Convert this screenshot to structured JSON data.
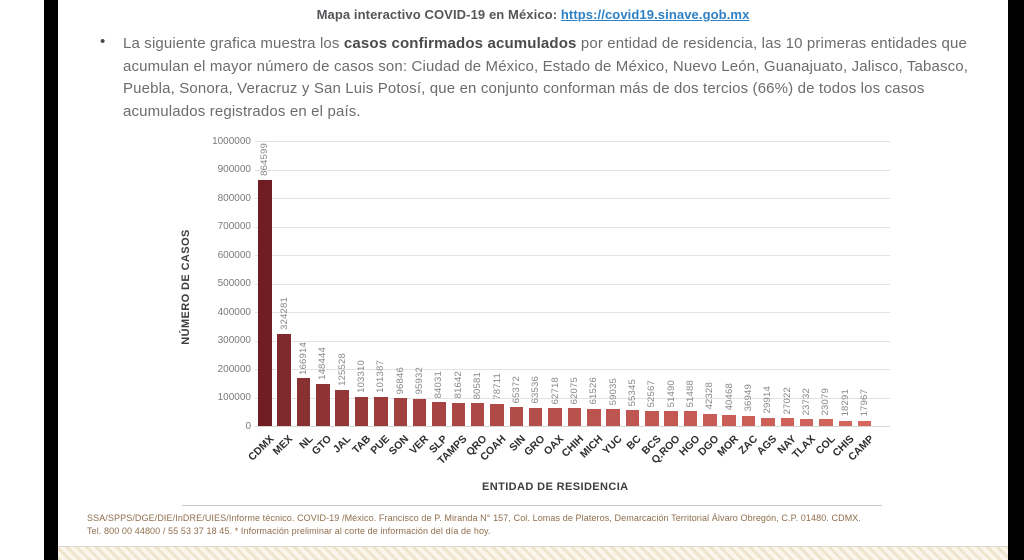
{
  "header": {
    "title": "Mapa interactivo COVID-19 en México:",
    "link": "https://covid19.sinave.gob.mx"
  },
  "bullet": {
    "marker": "•",
    "text_before": "La siguiente grafica muestra los ",
    "bold": "casos confirmados acumulados",
    "text_after": " por entidad de residencia, las 10 primeras entidades que acumulan el mayor número de casos son: Ciudad de México, Estado de México, Nuevo León, Guanajuato, Jalisco, Tabasco, Puebla, Sonora, Veracruz y San Luis Potosí, que en conjunto conforman más de dos tercios (66%) de todos los casos acumulados registrados en el país."
  },
  "chart_data": {
    "type": "bar",
    "title": "",
    "xlabel": "ENTIDAD DE RESIDENCIA",
    "ylabel": "NÚMERO DE CASOS",
    "ylim": [
      0,
      1000000
    ],
    "ytick_step": 100000,
    "yticks": [
      0,
      100000,
      200000,
      300000,
      400000,
      500000,
      600000,
      700000,
      800000,
      900000,
      1000000
    ],
    "grid": true,
    "legend": false,
    "categories": [
      "CDMX",
      "MEX",
      "NL",
      "GTO",
      "JAL",
      "TAB",
      "PUE",
      "SON",
      "VER",
      "SLP",
      "TAMPS",
      "QRO",
      "COAH",
      "SIN",
      "GRO",
      "OAX",
      "CHIH",
      "MICH",
      "YUC",
      "BC",
      "BCS",
      "Q.ROO",
      "HGO",
      "DGO",
      "MOR",
      "ZAC",
      "AGS",
      "NAY",
      "TLAX",
      "COL",
      "CHIS",
      "CAMP"
    ],
    "values": [
      864599,
      324281,
      166914,
      148444,
      125528,
      103310,
      101387,
      96846,
      95932,
      84031,
      81642,
      80581,
      78711,
      65372,
      63536,
      62718,
      62075,
      61526,
      59035,
      55345,
      52567,
      51490,
      51488,
      42328,
      40468,
      36949,
      29914,
      27022,
      23732,
      23079,
      18291,
      17967
    ],
    "bar_color_start": "#6f1d22",
    "bar_color_end": "#d6665e"
  },
  "footer": {
    "line1": "SSA/SPPS/DGE/DIE/InDRE/UIES/Informe técnico. COVID-19 /México. Francisco de P. Miranda N° 157, Col. Lomas de Plateros, Demarcación Territorial Álvaro Obregón, C.P. 01480. CDMX.",
    "line2": "Tel. 800 00 44800 / 55 53 37 18 45. * Información preliminar al corte de información del día de hoy."
  },
  "colors": {
    "link": "#2e80c4",
    "body_text": "#6b6c6e",
    "footer_text": "#8f6e4c",
    "gridline": "#e3e3e3",
    "side_bars": "#000000"
  }
}
